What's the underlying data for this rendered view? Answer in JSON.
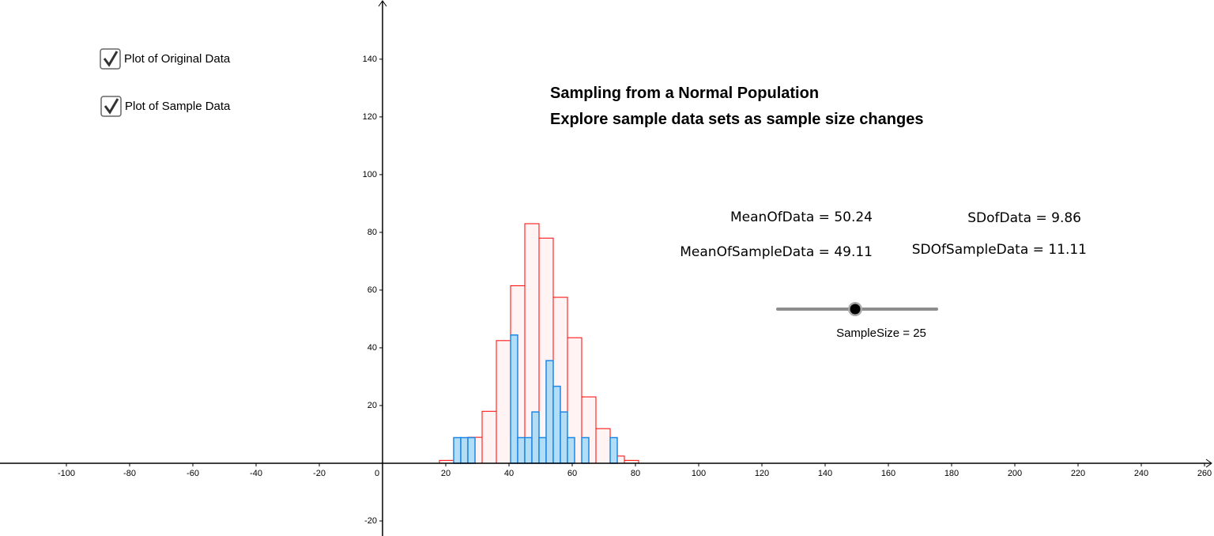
{
  "chart_data": {
    "type": "histogram",
    "title": "Sampling from a Normal Population",
    "subtitle": "Explore sample data sets as sample size changes",
    "xlim": [
      -121,
      263
    ],
    "ylim": [
      -25.2,
      160.5
    ],
    "xticks": [
      -100,
      -80,
      -60,
      -40,
      -20,
      0,
      20,
      40,
      60,
      80,
      100,
      120,
      140,
      160,
      180,
      200,
      220,
      240,
      260
    ],
    "yticks": [
      -20,
      20,
      40,
      60,
      80,
      100,
      120,
      140
    ],
    "series": [
      {
        "name": "Plot of Original Data",
        "color": "#ff0000",
        "fill": "#fff3f3",
        "bins": [
          18,
          22.5,
          27,
          31.5,
          36,
          40.5,
          45,
          49.5,
          54,
          58.5,
          63,
          67.5,
          72,
          76.5,
          81
        ],
        "values": [
          1,
          5,
          9,
          18,
          42.5,
          61.5,
          83,
          78,
          57.5,
          43.5,
          23,
          12,
          2.5,
          1
        ]
      },
      {
        "name": "Plot of Sample Data",
        "color": "#1e88e5",
        "fill": "#b3dcf5",
        "bins": [
          22.5,
          24.75,
          27,
          29.25,
          31.5,
          33.75,
          36,
          38.25,
          40.5,
          42.75,
          45,
          47.25,
          49.5,
          51.75,
          54,
          56.25,
          58.5,
          60.75,
          63,
          65.25,
          67.5,
          69.75,
          72,
          74.25
        ],
        "values": [
          8.89,
          8.89,
          8.89,
          0,
          0,
          0,
          0,
          0,
          44.44,
          8.89,
          8.89,
          17.78,
          8.89,
          35.56,
          26.67,
          17.78,
          8.89,
          0,
          8.89,
          0,
          0,
          0,
          8.89
        ]
      }
    ],
    "stats": [
      "MeanOfData = 50.24",
      "SDofData = 9.86",
      "MeanOfSampleData = 49.11",
      "SDOfSampleData = 11.11"
    ],
    "slider_label": "SampleSize = 25"
  }
}
